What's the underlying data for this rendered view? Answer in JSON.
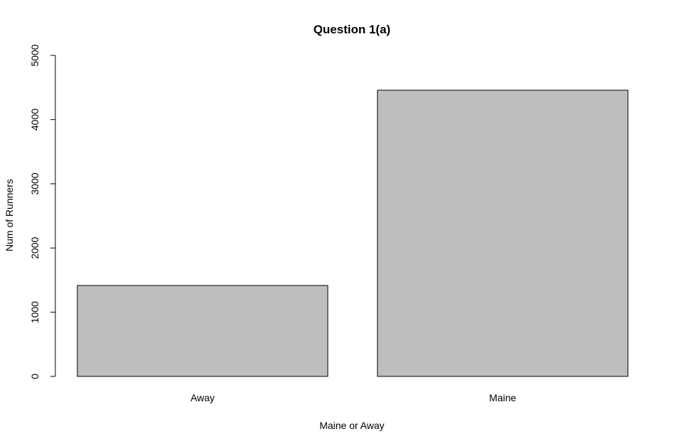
{
  "chart_data": {
    "type": "bar",
    "title": "Question 1(a)",
    "xlabel": "Maine or Away",
    "ylabel": "Num of Runners",
    "categories": [
      "Away",
      "Maine"
    ],
    "values": [
      1416,
      4458
    ],
    "ylim": [
      0,
      5000
    ],
    "yticks": [
      0,
      1000,
      2000,
      3000,
      4000,
      5000
    ],
    "bar_color": "#bebebe",
    "grid": false,
    "legend": "none"
  }
}
